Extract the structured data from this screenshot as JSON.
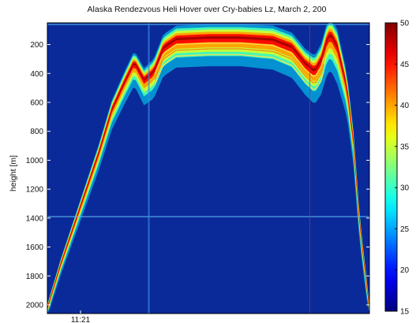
{
  "chart_data": {
    "type": "heatmap",
    "title": "Alaska Rendezvous Heli Hover over Cry-babies Lz, March 2, 200",
    "ylabel": "height [m]",
    "xlabel": "",
    "x_tick_labels": [
      "11:21"
    ],
    "y_ticks": [
      200,
      400,
      600,
      800,
      1000,
      1200,
      1400,
      1600,
      1800,
      2000
    ],
    "ylim": [
      2060,
      50
    ],
    "y_reversed": true,
    "colorbar": {
      "min": 15,
      "max": 50,
      "ticks": [
        15,
        20,
        25,
        30,
        35,
        40,
        45,
        50
      ],
      "colormap": "jet"
    },
    "colors": {
      "background_field": "#0a2a9a",
      "band_core": "#c81e1e",
      "band_mid": "#f2c21a",
      "band_edge": "#38c8e8"
    },
    "layer_profile": {
      "description_units": "x as fraction of time span, y in meters height",
      "top_surface": [
        [
          0.0,
          2000
        ],
        [
          0.04,
          1700
        ],
        [
          0.1,
          1300
        ],
        [
          0.16,
          900
        ],
        [
          0.2,
          600
        ],
        [
          0.24,
          400
        ],
        [
          0.27,
          260
        ],
        [
          0.3,
          380
        ],
        [
          0.33,
          320
        ],
        [
          0.36,
          150
        ],
        [
          0.4,
          90
        ],
        [
          0.5,
          80
        ],
        [
          0.6,
          80
        ],
        [
          0.7,
          90
        ],
        [
          0.76,
          140
        ],
        [
          0.8,
          250
        ],
        [
          0.83,
          300
        ],
        [
          0.85,
          220
        ],
        [
          0.87,
          60
        ],
        [
          0.88,
          40
        ],
        [
          0.9,
          120
        ],
        [
          0.93,
          420
        ],
        [
          0.95,
          800
        ],
        [
          0.97,
          1400
        ],
        [
          1.0,
          2000
        ]
      ],
      "layer_thickness_m": [
        [
          0.0,
          60
        ],
        [
          0.2,
          140
        ],
        [
          0.36,
          200
        ],
        [
          0.6,
          200
        ],
        [
          0.8,
          220
        ],
        [
          0.9,
          260
        ],
        [
          1.0,
          80
        ]
      ],
      "artifact_line_height": 1390,
      "artifact_columns": [
        0.315,
        0.815
      ]
    }
  }
}
